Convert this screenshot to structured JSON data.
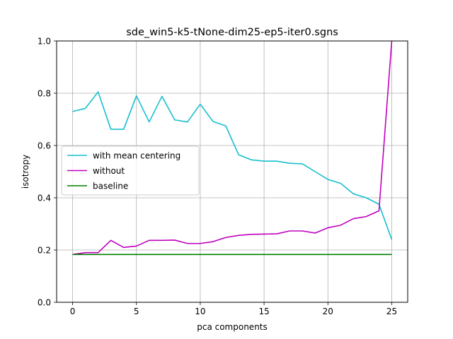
{
  "chart_data": {
    "type": "line",
    "title": "sde_win5-k5-tNone-dim25-ep5-iter0.sgns",
    "xlabel": "pca components",
    "ylabel": "isotropy",
    "xlim": [
      -1.25,
      26.25
    ],
    "ylim": [
      0.0,
      1.0
    ],
    "xticks": [
      0,
      5,
      10,
      15,
      20,
      25
    ],
    "xtick_labels": [
      "0",
      "5",
      "10",
      "15",
      "20",
      "25"
    ],
    "yticks": [
      0.0,
      0.2,
      0.4,
      0.6,
      0.8,
      1.0
    ],
    "ytick_labels": [
      "0.0",
      "0.2",
      "0.4",
      "0.6",
      "0.8",
      "1.0"
    ],
    "grid": true,
    "legend_position": "center-left",
    "x": [
      0,
      1,
      2,
      3,
      4,
      5,
      6,
      7,
      8,
      9,
      10,
      11,
      12,
      13,
      14,
      15,
      16,
      17,
      18,
      19,
      20,
      21,
      22,
      23,
      24,
      25
    ],
    "series": [
      {
        "name": "with mean centering",
        "color": "#17becf",
        "values": [
          0.73,
          0.742,
          0.805,
          0.662,
          0.662,
          0.79,
          0.69,
          0.788,
          0.698,
          0.69,
          0.758,
          0.692,
          0.675,
          0.565,
          0.545,
          0.54,
          0.54,
          0.532,
          0.53,
          0.5,
          0.47,
          0.455,
          0.415,
          0.4,
          0.375,
          0.24
        ]
      },
      {
        "name": "without",
        "color": "#bf00bf",
        "values": [
          0.183,
          0.19,
          0.19,
          0.237,
          0.21,
          0.215,
          0.237,
          0.237,
          0.238,
          0.225,
          0.225,
          0.232,
          0.248,
          0.256,
          0.26,
          0.261,
          0.262,
          0.273,
          0.273,
          0.265,
          0.285,
          0.295,
          0.32,
          0.328,
          0.35,
          1.0
        ]
      },
      {
        "name": "baseline",
        "color": "#008000",
        "values": [
          0.183,
          0.183,
          0.183,
          0.183,
          0.183,
          0.183,
          0.183,
          0.183,
          0.183,
          0.183,
          0.183,
          0.183,
          0.183,
          0.183,
          0.183,
          0.183,
          0.183,
          0.183,
          0.183,
          0.183,
          0.183,
          0.183,
          0.183,
          0.183,
          0.183,
          0.183
        ]
      }
    ]
  }
}
